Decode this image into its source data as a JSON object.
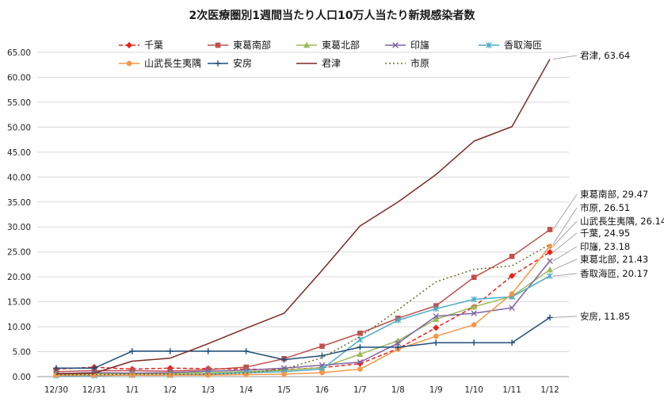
{
  "chart_data": {
    "type": "line",
    "title": "2次医療圏別1週間当たり人口10万人当たり新規感染者数",
    "xlabel": "",
    "ylabel": "",
    "ylim": [
      0,
      65
    ],
    "yticks": [
      "0.00",
      "5.00",
      "10.00",
      "15.00",
      "20.00",
      "25.00",
      "30.00",
      "35.00",
      "40.00",
      "45.00",
      "50.00",
      "55.00",
      "60.00",
      "65.00"
    ],
    "categories": [
      "12/30",
      "12/31",
      "1/1",
      "1/2",
      "1/3",
      "1/4",
      "1/5",
      "1/6",
      "1/7",
      "1/8",
      "1/9",
      "1/10",
      "1/11",
      "1/12"
    ],
    "legend_position": "top",
    "series": [
      {
        "name": "千葉",
        "color": "#e8201c",
        "dash": "5,3",
        "marker": "diamond",
        "values": [
          1.5,
          1.9,
          1.5,
          1.7,
          1.6,
          1.5,
          1.4,
          1.8,
          2.6,
          5.6,
          9.8,
          14.0,
          20.2,
          24.95
        ]
      },
      {
        "name": "東葛南部",
        "color": "#c0504d",
        "dash": "",
        "marker": "square",
        "values": [
          1.0,
          1.2,
          1.2,
          1.1,
          1.4,
          1.9,
          3.6,
          6.1,
          8.7,
          11.7,
          14.2,
          19.9,
          24.1,
          29.47
        ]
      },
      {
        "name": "東葛北部",
        "color": "#9bbb59",
        "dash": "",
        "marker": "triangle",
        "values": [
          0.5,
          0.6,
          0.6,
          0.6,
          0.8,
          1.0,
          1.3,
          1.8,
          4.5,
          7.2,
          11.5,
          14.0,
          16.1,
          21.43
        ]
      },
      {
        "name": "印旛",
        "color": "#8064a2",
        "dash": "",
        "marker": "x",
        "values": [
          0.6,
          0.8,
          0.7,
          0.8,
          1.1,
          1.3,
          1.7,
          2.3,
          2.9,
          6.7,
          12.1,
          12.7,
          13.8,
          23.18
        ]
      },
      {
        "name": "香取海匝",
        "color": "#4bacc6",
        "dash": "",
        "marker": "asterisk",
        "values": [
          0.2,
          0.2,
          0.3,
          0.3,
          0.5,
          0.8,
          1.0,
          1.5,
          7.4,
          11.3,
          13.6,
          15.5,
          16.0,
          20.17
        ]
      },
      {
        "name": "山武長生夷隅",
        "color": "#f79646",
        "dash": "",
        "marker": "circle",
        "values": [
          0.3,
          0.3,
          0.3,
          0.3,
          0.3,
          0.4,
          0.5,
          0.8,
          1.5,
          5.5,
          8.1,
          10.4,
          16.6,
          26.14
        ]
      },
      {
        "name": "安房",
        "color": "#1f4e79",
        "dash": "",
        "marker": "plus",
        "values": [
          1.7,
          1.7,
          5.1,
          5.1,
          5.1,
          5.1,
          3.4,
          4.2,
          5.9,
          5.9,
          6.8,
          6.8,
          6.8,
          11.85
        ]
      },
      {
        "name": "君津",
        "color": "#7b2a24",
        "dash": "",
        "marker": "none",
        "values": [
          0.6,
          0.7,
          3.1,
          3.7,
          6.6,
          9.7,
          12.7,
          21.3,
          30.2,
          35.0,
          40.5,
          47.2,
          50.1,
          63.64
        ]
      },
      {
        "name": "市原",
        "color": "#6b6f2a",
        "dash": "2,3",
        "marker": "none",
        "values": [
          0.4,
          0.4,
          0.5,
          0.5,
          0.5,
          0.7,
          1.5,
          3.8,
          8.0,
          13.4,
          19.0,
          21.5,
          22.2,
          26.51
        ]
      }
    ],
    "callouts": [
      {
        "label": "君津, 63.64",
        "series": "君津"
      },
      {
        "label": "東葛南部, 29.47",
        "series": "東葛南部"
      },
      {
        "label": "市原, 26.51",
        "series": "市原"
      },
      {
        "label": "山武長生夷隅, 26.14",
        "series": "山武長生夷隅"
      },
      {
        "label": "千葉, 24.95",
        "series": "千葉"
      },
      {
        "label": "印旛, 23.18",
        "series": "印旛"
      },
      {
        "label": "東葛北部, 21.43",
        "series": "東葛北部"
      },
      {
        "label": "香取海匝, 20.17",
        "series": "香取海匝"
      },
      {
        "label": "安房, 11.85",
        "series": "安房"
      }
    ]
  }
}
